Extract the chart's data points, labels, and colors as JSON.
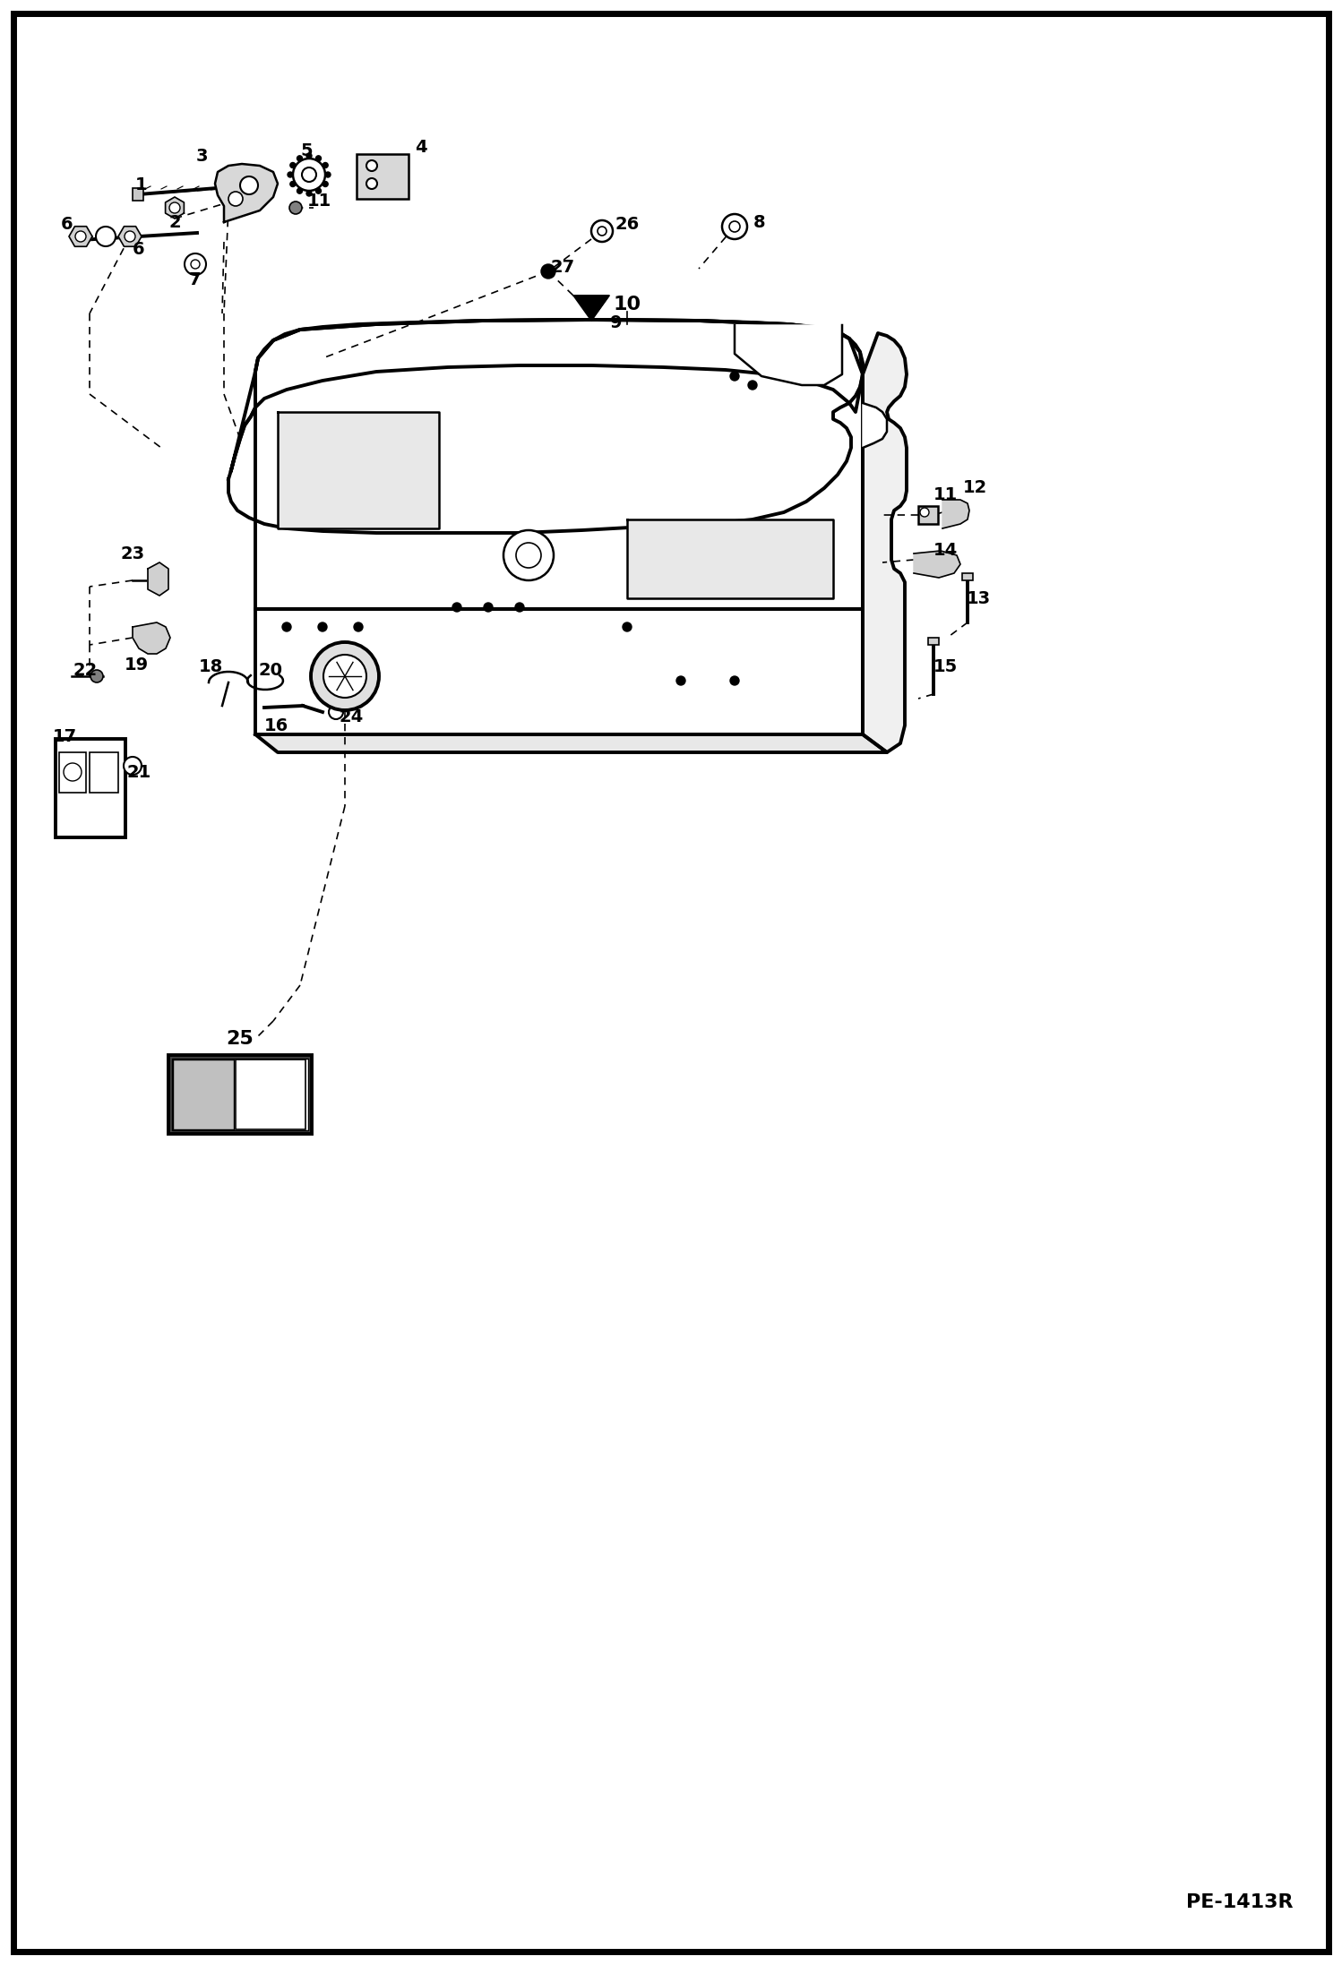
{
  "bg_color": "#ffffff",
  "border_color": "#000000",
  "line_color": "#000000",
  "diagram_id": "PE-1413R",
  "fig_width": 14.98,
  "fig_height": 21.94,
  "dpi": 100
}
